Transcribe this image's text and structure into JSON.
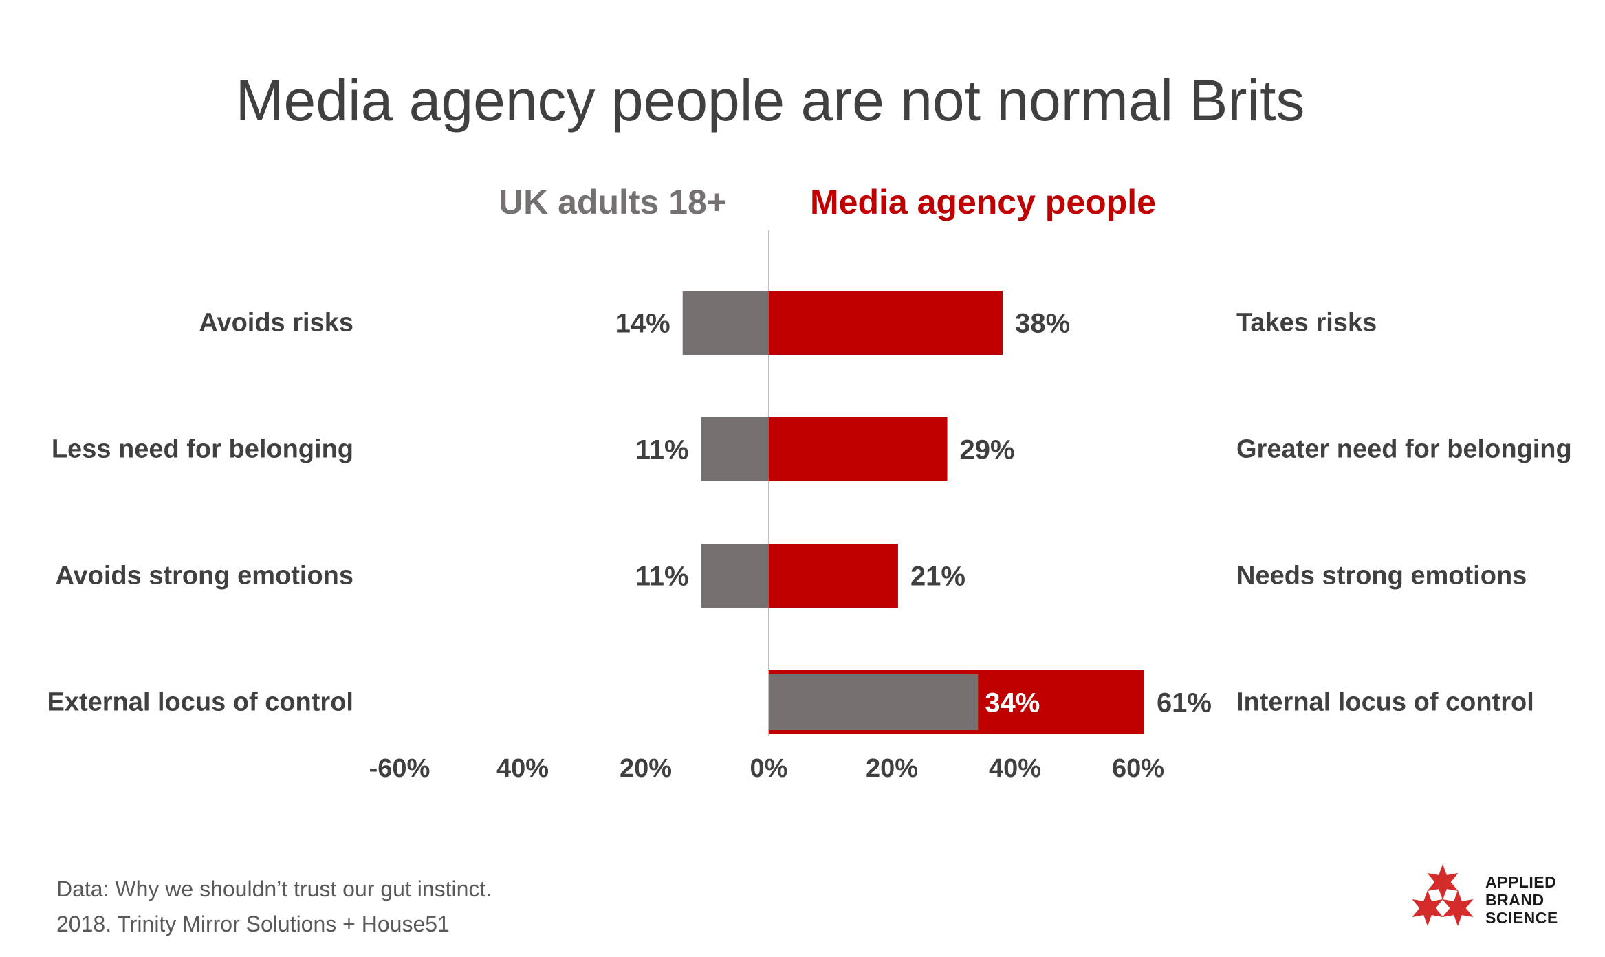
{
  "title": "Media agency people are not normal Brits",
  "source": {
    "line1": "Data: Why we shouldn’t trust our gut instinct.",
    "line2": "2018. Trinity Mirror Solutions + House51"
  },
  "logo": {
    "line1": "APPLIED",
    "line2": "BRAND",
    "line3": "SCIENCE",
    "color": "#d42b2b"
  },
  "chart_data": {
    "type": "bar",
    "orientation": "horizontal-diverging",
    "series": [
      {
        "name": "UK adults 18+",
        "color": "#767171",
        "values": [
          14,
          11,
          11,
          34
        ]
      },
      {
        "name": "Media agency people",
        "color": "#c00000",
        "values": [
          38,
          29,
          21,
          61
        ]
      }
    ],
    "categories_left": [
      "Avoids risks",
      "Less need for belonging",
      "Avoids strong emotions",
      "External locus of control"
    ],
    "categories_right": [
      "Takes risks",
      "Greater need for belonging",
      "Needs strong emotions",
      "Internal locus of control"
    ],
    "value_labels": {
      "UK adults 18+": [
        "14%",
        "11%",
        "11%",
        "34%"
      ],
      "Media agency people": [
        "38%",
        "29%",
        "21%",
        "61%"
      ]
    },
    "xlim": [
      -60,
      60
    ],
    "xticks": [
      "-60%",
      "40%",
      "20%",
      "0%",
      "20%",
      "40%",
      "60%"
    ],
    "note": "Last row: both bars drawn to the right of zero, grey overlapping red",
    "grid": false,
    "legend": "top"
  }
}
